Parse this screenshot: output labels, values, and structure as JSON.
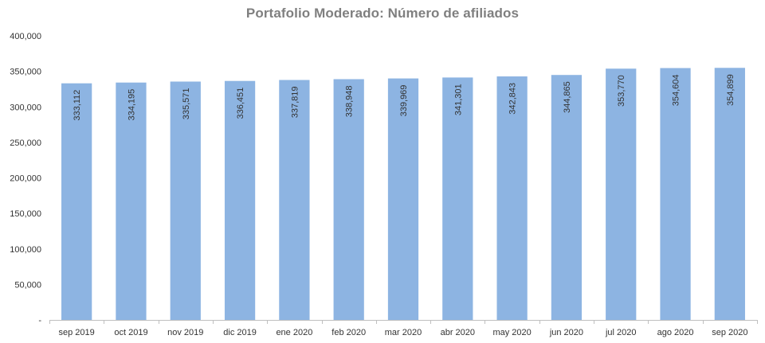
{
  "chart_data": {
    "type": "bar",
    "title": "Portafolio Moderado: Número de afiliados",
    "xlabel": "",
    "ylabel": "",
    "categories": [
      "sep 2019",
      "oct 2019",
      "nov 2019",
      "dic 2019",
      "ene 2020",
      "feb 2020",
      "mar 2020",
      "abr 2020",
      "may 2020",
      "jun 2020",
      "jul 2020",
      "ago 2020",
      "sep 2020"
    ],
    "values": [
      333112,
      334195,
      335571,
      336451,
      337819,
      338948,
      339969,
      341301,
      342843,
      344865,
      353770,
      354604,
      354899
    ],
    "value_labels": [
      "333,112",
      "334,195",
      "335,571",
      "336,451",
      "337,819",
      "338,948",
      "339,969",
      "341,301",
      "342,843",
      "344,865",
      "353,770",
      "354,604",
      "354,899"
    ],
    "ylim": [
      0,
      400000
    ],
    "y_ticks": [
      0,
      50000,
      100000,
      150000,
      200000,
      250000,
      300000,
      350000,
      400000
    ],
    "y_tick_labels": [
      "-",
      "50,000",
      "100,000",
      "150,000",
      "200,000",
      "250,000",
      "300,000",
      "350,000",
      "400,000"
    ],
    "grid": false,
    "legend": "none",
    "bar_color": "#8db4e2",
    "title_color": "#7f7f7f",
    "text_color": "#333333",
    "axis_color": "#bfbfbf"
  }
}
